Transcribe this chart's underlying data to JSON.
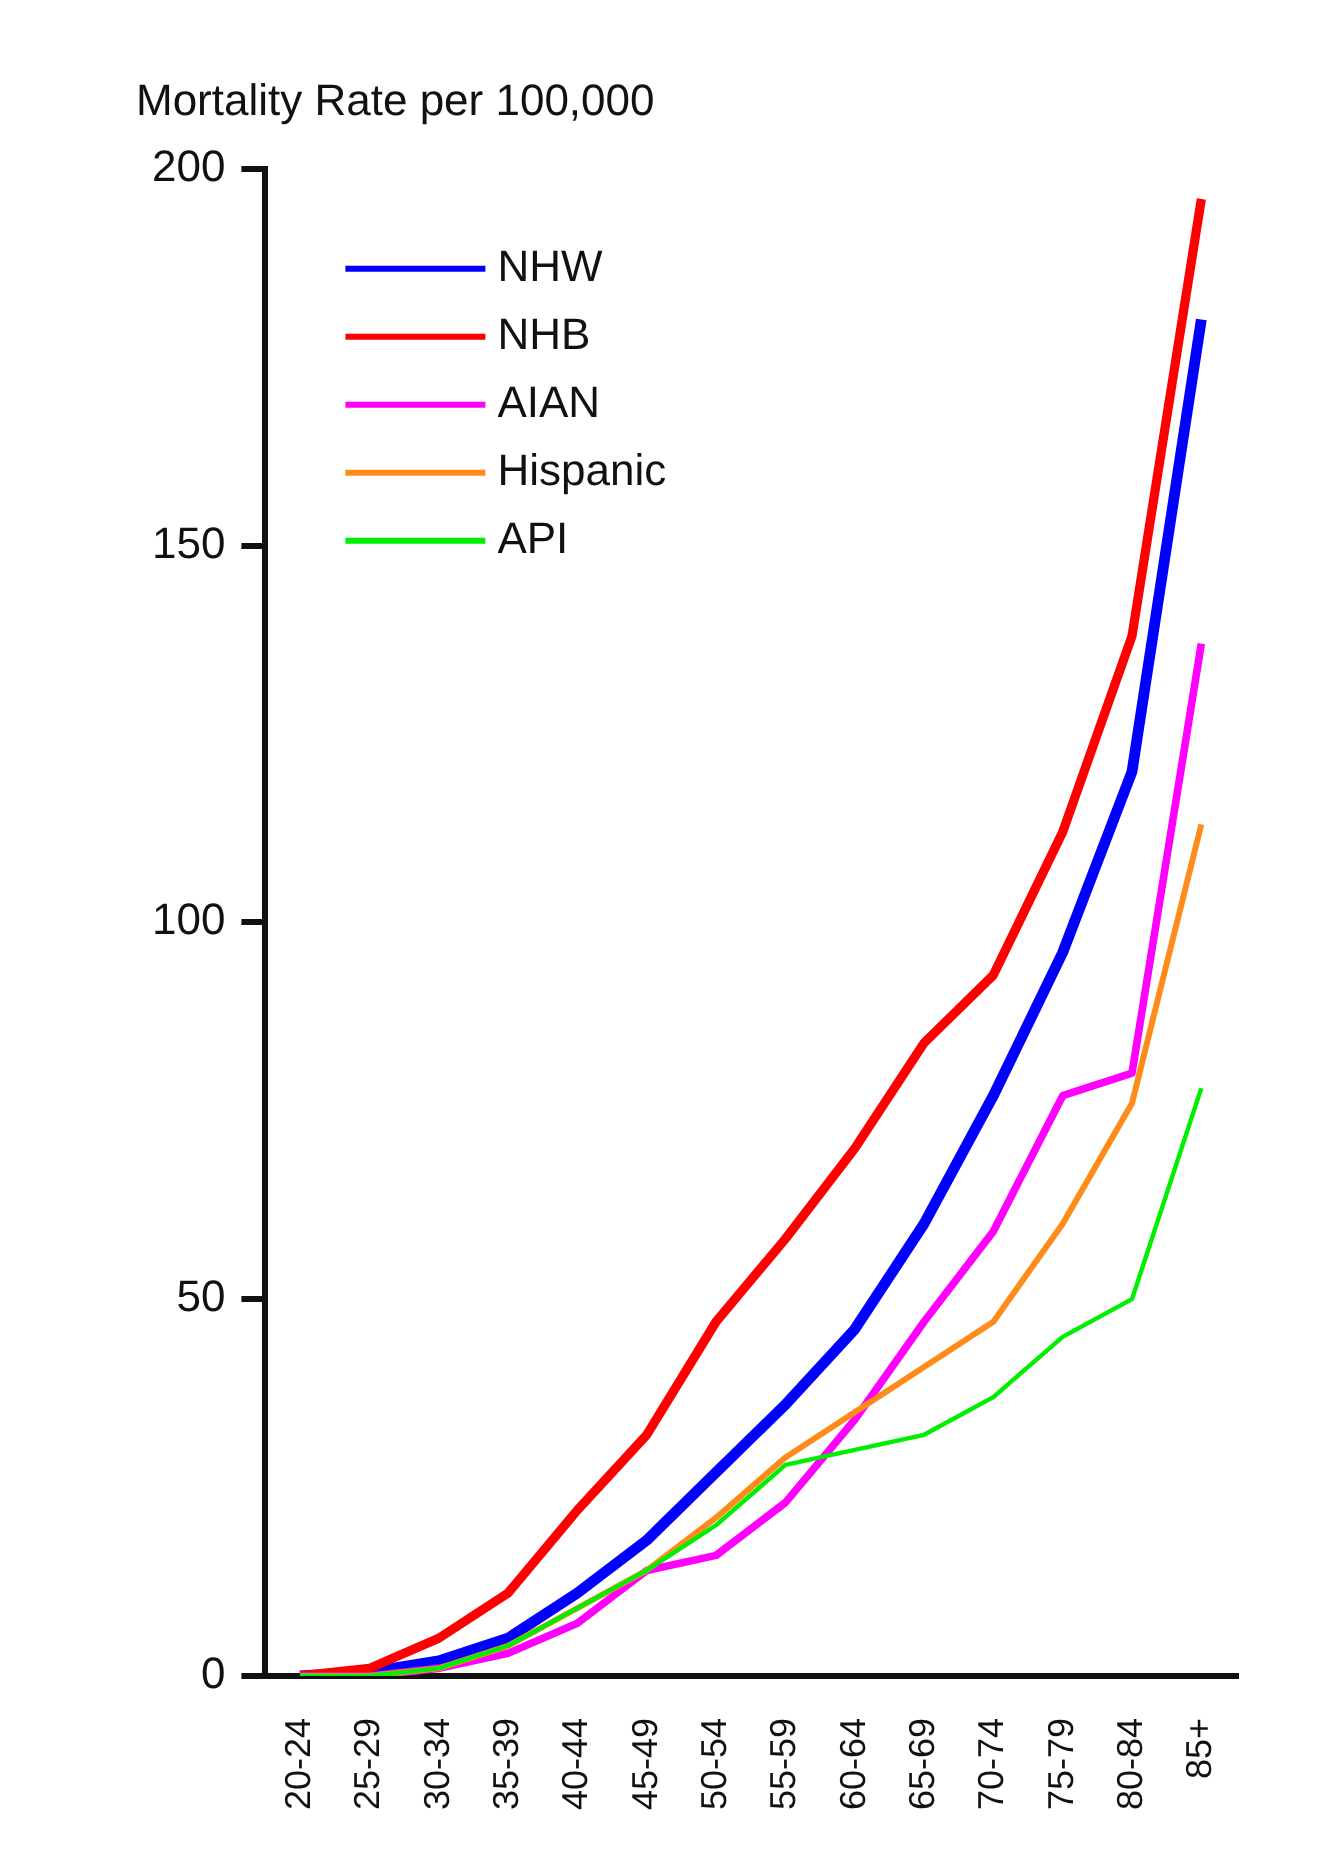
{
  "chart_data": {
    "type": "line",
    "ylabel": "Mortality Rate per 100,000",
    "categories": [
      "20-24",
      "25-29",
      "30-34",
      "35-39",
      "40-44",
      "45-49",
      "50-54",
      "55-59",
      "60-64",
      "65-69",
      "70-74",
      "75-79",
      "80-84",
      "85+"
    ],
    "series": [
      {
        "name": "NHW",
        "color": "#0000ff",
        "values": [
          0,
          0.5,
          2,
          5,
          11,
          18,
          27,
          36,
          46,
          60,
          77,
          96,
          120,
          180
        ]
      },
      {
        "name": "NHB",
        "color": "#ff0000",
        "values": [
          0,
          1,
          5,
          11,
          22,
          32,
          47,
          58,
          70,
          84,
          93,
          112,
          138,
          196
        ]
      },
      {
        "name": "AIAN",
        "color": "#ff00ff",
        "values": [
          0,
          0,
          1,
          3,
          7,
          14,
          16,
          23,
          34,
          47,
          59,
          77,
          80,
          137
        ]
      },
      {
        "name": "Hispanic",
        "color": "#ff8c1a",
        "values": [
          0,
          0,
          1,
          4,
          9,
          14,
          21,
          29,
          35,
          41,
          47,
          60,
          76,
          113
        ]
      },
      {
        "name": "API",
        "color": "#00ee00",
        "values": [
          0,
          0,
          1,
          4,
          9,
          14,
          20,
          28,
          30,
          32,
          37,
          45,
          50,
          78
        ]
      }
    ],
    "ylim": [
      0,
      200
    ],
    "yticks": [
      0,
      50,
      100,
      150,
      200
    ],
    "grid": false,
    "legend": "top left",
    "marker": "none",
    "line_style": "solid"
  }
}
